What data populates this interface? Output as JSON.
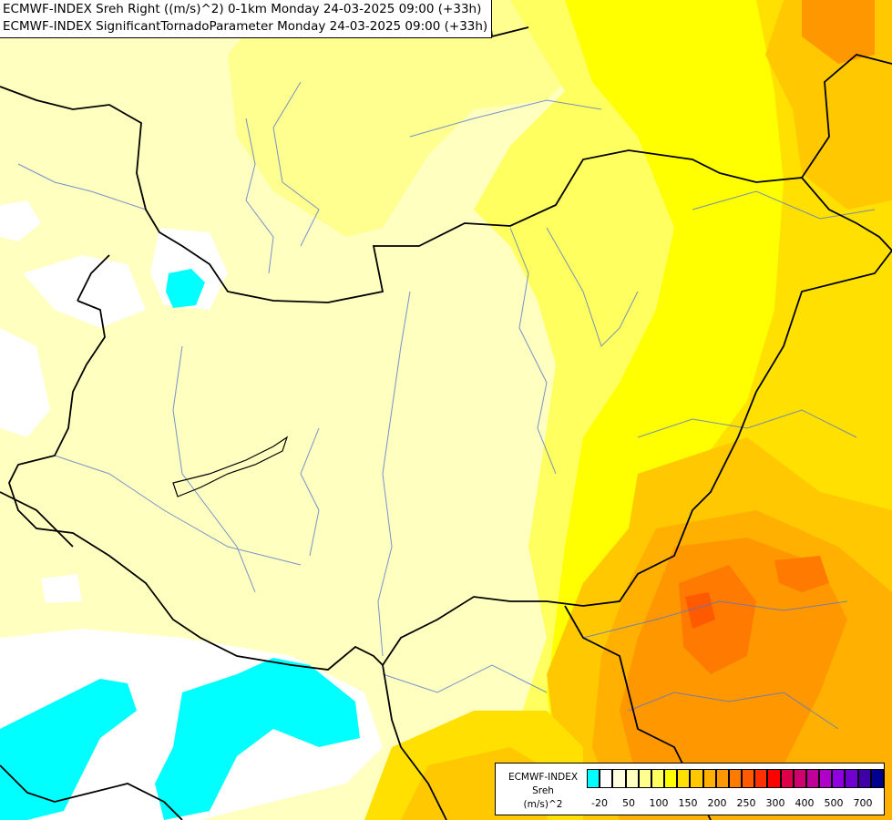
{
  "title": {
    "line1": "ECMWF-INDEX Sreh Right ((m/s)^2) 0-1km Monday 24-03-2025 09:00 (+33h)",
    "line2": "ECMWF-INDEX SignificantTornadoParameter Monday 24-03-2025 09:00 (+33h)"
  },
  "legend": {
    "title_line1": "ECMWF-INDEX",
    "title_line2": "Sreh",
    "title_line3": "(m/s)^2",
    "swatch_colors": [
      "#00ffff",
      "#ffffff",
      "#ffffe0",
      "#ffffc0",
      "#ffff90",
      "#ffff60",
      "#ffff00",
      "#ffe000",
      "#ffc800",
      "#ffb000",
      "#ff9800",
      "#ff7a00",
      "#ff5a00",
      "#ff3000",
      "#ff0000",
      "#e0004a",
      "#d0006e",
      "#c00098",
      "#b000c8",
      "#9000e0",
      "#7000d0",
      "#4000a8",
      "#000090"
    ],
    "tick_labels": [
      "-20",
      "50",
      "100",
      "150",
      "200",
      "250",
      "300",
      "400",
      "500",
      "700"
    ]
  },
  "colors": {
    "background_field": "#ffffc0",
    "cyan_negative": "#00ffff",
    "white_low": "#ffffff",
    "yellow": "#ffff00",
    "orange": "#ffb000",
    "red": "#ff5a00"
  }
}
